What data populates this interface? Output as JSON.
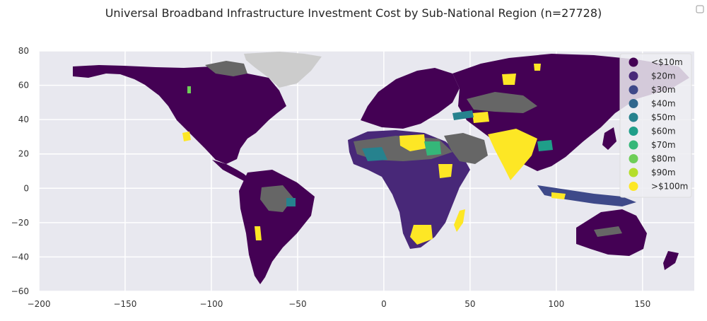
{
  "title": "Universal Broadband Infrastructure Investment Cost by Sub-National Region (n=27728)",
  "colors": {
    "background": "#e8e8ef",
    "grid": "#ffffff",
    "no_data": "#666666",
    "antarctica_unmapped": "#cccccc",
    "axis_text": "#333333"
  },
  "chart_data": {
    "type": "map",
    "title": "Universal Broadband Infrastructure Investment Cost by Sub-National Region (n=27728)",
    "xlim": [
      -200,
      180
    ],
    "ylim": [
      -60,
      80
    ],
    "x_ticks": [
      -200,
      -150,
      -100,
      -50,
      0,
      50,
      100,
      150
    ],
    "y_ticks": [
      80,
      60,
      40,
      20,
      0,
      -20,
      -40,
      -60
    ],
    "x_tick_labels": [
      "−200",
      "−150",
      "−100",
      "−50",
      "0",
      "50",
      "100",
      "150"
    ],
    "y_tick_labels": [
      "80",
      "60",
      "40",
      "20",
      "0",
      "−20",
      "−40",
      "−60"
    ],
    "grid": true,
    "legend_position": "top-right",
    "legend": [
      {
        "label": "<$10m",
        "color": "#440154"
      },
      {
        "label": "$20m",
        "color": "#482878"
      },
      {
        "label": "$30m",
        "color": "#3e4989"
      },
      {
        "label": "$40m",
        "color": "#31688e"
      },
      {
        "label": "$50m",
        "color": "#26828e"
      },
      {
        "label": "$60m",
        "color": "#1f9e89"
      },
      {
        "label": "$70m",
        "color": "#35b779"
      },
      {
        "label": "$80m",
        "color": "#6ece58"
      },
      {
        "label": "$90m",
        "color": "#b5de2b"
      },
      {
        "label": ">$100m",
        "color": "#fde725"
      }
    ]
  }
}
